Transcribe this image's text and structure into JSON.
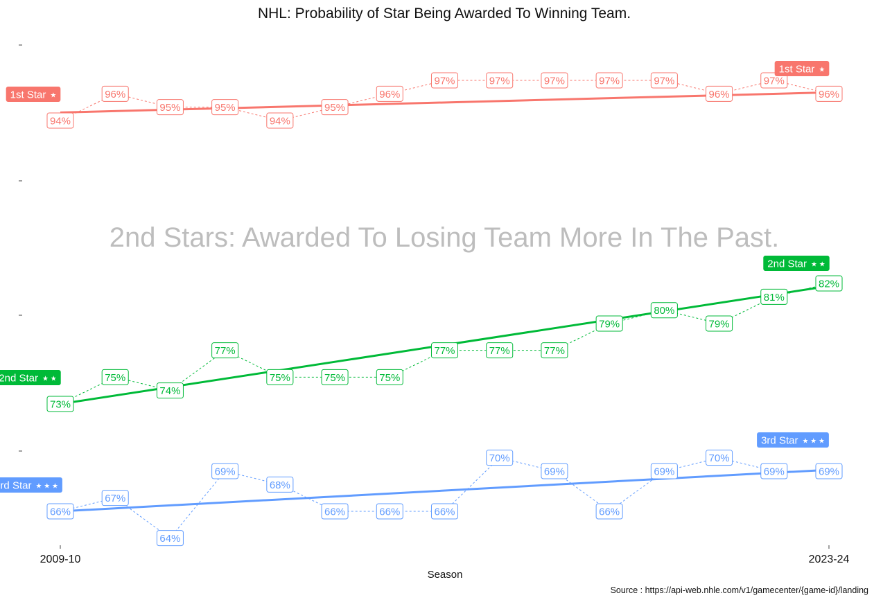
{
  "chart_data": {
    "type": "line",
    "title": "NHL: Probability of Star Being Awarded To Winning Team.",
    "subtitle": "2nd Stars: Awarded To Losing Team More In The Past.",
    "xlabel": "Season",
    "caption": "Source :  https://api-web.nhle.com/v1/gamecenter/{game-id}/landing",
    "x_tick_labels": [
      "2009-10",
      "2023-24"
    ],
    "n_seasons": 15,
    "label_format": "percent",
    "grid": false,
    "series": [
      {
        "name": "1st Star",
        "stars": "★",
        "color": "#F8766D",
        "values": [
          94,
          96,
          95,
          95,
          94,
          95,
          96,
          97,
          97,
          97,
          97,
          97,
          96,
          97,
          96
        ],
        "trend": [
          94.6,
          96.1
        ]
      },
      {
        "name": "2nd Star",
        "stars": "★ ★",
        "color": "#00BA38",
        "values": [
          73,
          75,
          74,
          77,
          75,
          75,
          75,
          77,
          77,
          77,
          79,
          80,
          79,
          81,
          82
        ],
        "trend": [
          73.0,
          81.8
        ]
      },
      {
        "name": "3rd Star",
        "stars": "★ ★ ★",
        "color": "#619CFF",
        "values": [
          66,
          67,
          64,
          69,
          68,
          66,
          66,
          66,
          70,
          69,
          66,
          69,
          70,
          69,
          69
        ],
        "trend": [
          66.0,
          69.1
        ]
      }
    ]
  }
}
